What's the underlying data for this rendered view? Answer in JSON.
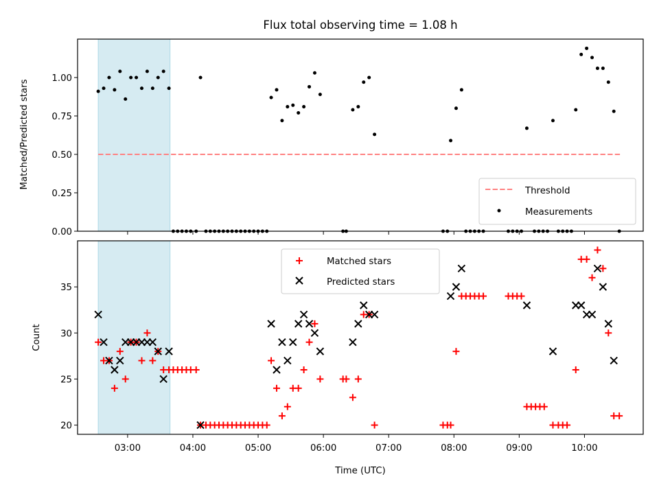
{
  "chart_data": [
    {
      "type": "scatter",
      "title": "Flux total observing time = 1.08 h",
      "xlabel": "",
      "ylabel": "Matched/Predicted stars",
      "xlim": [
        "02:14",
        "10:54"
      ],
      "ylim": [
        0,
        1.25
      ],
      "x_ticks": [
        "03:00",
        "04:00",
        "05:00",
        "06:00",
        "07:00",
        "08:00",
        "09:00",
        "10:00"
      ],
      "y_ticks": [
        "0.00",
        "0.25",
        "0.50",
        "0.75",
        "1.00"
      ],
      "y_tick_values": [
        0,
        0.25,
        0.5,
        0.75,
        1.0
      ],
      "shaded_span": [
        "02:33",
        "03:39"
      ],
      "shade_color": "#add8e6",
      "grid": false,
      "legend_position": "lower right",
      "threshold": {
        "name": "Threshold",
        "value": 0.5,
        "x_range": [
          "02:33",
          "10:34"
        ],
        "color": "#ff8080"
      },
      "series": [
        {
          "name": "Measurements",
          "color": "#000000",
          "marker": "dot",
          "points": [
            [
              "02:33",
              0.91
            ],
            [
              "02:38",
              0.93
            ],
            [
              "02:43",
              1.0
            ],
            [
              "02:48",
              0.92
            ],
            [
              "02:53",
              1.04
            ],
            [
              "02:58",
              0.86
            ],
            [
              "03:03",
              1.0
            ],
            [
              "03:08",
              1.0
            ],
            [
              "03:13",
              0.93
            ],
            [
              "03:18",
              1.04
            ],
            [
              "03:23",
              0.93
            ],
            [
              "03:28",
              1.0
            ],
            [
              "03:33",
              1.04
            ],
            [
              "03:38",
              0.93
            ],
            [
              "03:42",
              0.0
            ],
            [
              "03:46",
              0.0
            ],
            [
              "03:50",
              0.0
            ],
            [
              "03:54",
              0.0
            ],
            [
              "03:58",
              0.0
            ],
            [
              "04:03",
              0.0
            ],
            [
              "04:07",
              1.0
            ],
            [
              "04:12",
              0.0
            ],
            [
              "04:16",
              0.0
            ],
            [
              "04:20",
              0.0
            ],
            [
              "04:24",
              0.0
            ],
            [
              "04:28",
              0.0
            ],
            [
              "04:32",
              0.0
            ],
            [
              "04:36",
              0.0
            ],
            [
              "04:40",
              0.0
            ],
            [
              "04:44",
              0.0
            ],
            [
              "04:48",
              0.0
            ],
            [
              "04:52",
              0.0
            ],
            [
              "04:56",
              0.0
            ],
            [
              "05:00",
              0.0
            ],
            [
              "05:04",
              0.0
            ],
            [
              "05:08",
              0.0
            ],
            [
              "05:12",
              0.87
            ],
            [
              "05:17",
              0.92
            ],
            [
              "05:22",
              0.72
            ],
            [
              "05:27",
              0.81
            ],
            [
              "05:32",
              0.82
            ],
            [
              "05:37",
              0.77
            ],
            [
              "05:42",
              0.81
            ],
            [
              "05:47",
              0.94
            ],
            [
              "05:52",
              1.03
            ],
            [
              "05:57",
              0.89
            ],
            [
              "06:18",
              0.0
            ],
            [
              "06:21",
              0.0
            ],
            [
              "06:27",
              0.79
            ],
            [
              "06:32",
              0.81
            ],
            [
              "06:37",
              0.97
            ],
            [
              "06:42",
              1.0
            ],
            [
              "06:47",
              0.63
            ],
            [
              "07:50",
              0.0
            ],
            [
              "07:54",
              0.0
            ],
            [
              "07:57",
              0.59
            ],
            [
              "08:02",
              0.8
            ],
            [
              "08:07",
              0.92
            ],
            [
              "08:11",
              0.0
            ],
            [
              "08:15",
              0.0
            ],
            [
              "08:19",
              0.0
            ],
            [
              "08:23",
              0.0
            ],
            [
              "08:27",
              0.0
            ],
            [
              "08:50",
              0.0
            ],
            [
              "08:54",
              0.0
            ],
            [
              "08:58",
              0.0
            ],
            [
              "09:02",
              0.0
            ],
            [
              "09:07",
              0.67
            ],
            [
              "09:14",
              0.0
            ],
            [
              "09:18",
              0.0
            ],
            [
              "09:22",
              0.0
            ],
            [
              "09:26",
              0.0
            ],
            [
              "09:31",
              0.72
            ],
            [
              "09:36",
              0.0
            ],
            [
              "09:40",
              0.0
            ],
            [
              "09:44",
              0.0
            ],
            [
              "09:48",
              0.0
            ],
            [
              "09:52",
              0.79
            ],
            [
              "09:57",
              1.15
            ],
            [
              "10:02",
              1.19
            ],
            [
              "10:07",
              1.13
            ],
            [
              "10:12",
              1.06
            ],
            [
              "10:17",
              1.06
            ],
            [
              "10:22",
              0.97
            ],
            [
              "10:27",
              0.78
            ],
            [
              "10:32",
              0.0
            ]
          ]
        }
      ]
    },
    {
      "type": "scatter",
      "title": "",
      "xlabel": "Time (UTC)",
      "ylabel": "Count",
      "xlim": [
        "02:14",
        "10:54"
      ],
      "ylim": [
        19,
        40
      ],
      "x_ticks": [
        "03:00",
        "04:00",
        "05:00",
        "06:00",
        "07:00",
        "08:00",
        "09:00",
        "10:00"
      ],
      "y_ticks": [
        "20",
        "25",
        "30",
        "35"
      ],
      "y_tick_values": [
        20,
        25,
        30,
        35
      ],
      "shaded_span": [
        "02:33",
        "03:39"
      ],
      "grid": false,
      "legend_position": "upper center",
      "series": [
        {
          "name": "Matched stars",
          "color": "#ff0000",
          "marker": "plus",
          "points": [
            [
              "02:33",
              29
            ],
            [
              "02:38",
              27
            ],
            [
              "02:43",
              27
            ],
            [
              "02:48",
              24
            ],
            [
              "02:53",
              28
            ],
            [
              "02:58",
              25
            ],
            [
              "03:03",
              29
            ],
            [
              "03:08",
              29
            ],
            [
              "03:13",
              27
            ],
            [
              "03:18",
              30
            ],
            [
              "03:23",
              27
            ],
            [
              "03:28",
              28
            ],
            [
              "03:33",
              26
            ],
            [
              "03:38",
              26
            ],
            [
              "03:42",
              26
            ],
            [
              "03:46",
              26
            ],
            [
              "03:50",
              26
            ],
            [
              "03:54",
              26
            ],
            [
              "03:58",
              26
            ],
            [
              "04:03",
              26
            ],
            [
              "04:07",
              20
            ],
            [
              "04:12",
              20
            ],
            [
              "04:16",
              20
            ],
            [
              "04:20",
              20
            ],
            [
              "04:24",
              20
            ],
            [
              "04:28",
              20
            ],
            [
              "04:32",
              20
            ],
            [
              "04:36",
              20
            ],
            [
              "04:40",
              20
            ],
            [
              "04:44",
              20
            ],
            [
              "04:48",
              20
            ],
            [
              "04:52",
              20
            ],
            [
              "04:56",
              20
            ],
            [
              "05:00",
              20
            ],
            [
              "05:04",
              20
            ],
            [
              "05:08",
              20
            ],
            [
              "05:12",
              27
            ],
            [
              "05:17",
              24
            ],
            [
              "05:22",
              21
            ],
            [
              "05:27",
              22
            ],
            [
              "05:32",
              24
            ],
            [
              "05:37",
              24
            ],
            [
              "05:42",
              26
            ],
            [
              "05:47",
              29
            ],
            [
              "05:52",
              31
            ],
            [
              "05:57",
              25
            ],
            [
              "06:18",
              25
            ],
            [
              "06:21",
              25
            ],
            [
              "06:27",
              23
            ],
            [
              "06:32",
              25
            ],
            [
              "06:37",
              32
            ],
            [
              "06:42",
              32
            ],
            [
              "06:47",
              20
            ],
            [
              "07:50",
              20
            ],
            [
              "07:54",
              20
            ],
            [
              "07:57",
              20
            ],
            [
              "08:02",
              28
            ],
            [
              "08:07",
              34
            ],
            [
              "08:11",
              34
            ],
            [
              "08:15",
              34
            ],
            [
              "08:19",
              34
            ],
            [
              "08:23",
              34
            ],
            [
              "08:27",
              34
            ],
            [
              "08:50",
              34
            ],
            [
              "08:54",
              34
            ],
            [
              "08:58",
              34
            ],
            [
              "09:02",
              34
            ],
            [
              "09:07",
              22
            ],
            [
              "09:11",
              22
            ],
            [
              "09:15",
              22
            ],
            [
              "09:19",
              22
            ],
            [
              "09:23",
              22
            ],
            [
              "09:31",
              20
            ],
            [
              "09:36",
              20
            ],
            [
              "09:40",
              20
            ],
            [
              "09:44",
              20
            ],
            [
              "09:52",
              26
            ],
            [
              "09:57",
              38
            ],
            [
              "10:02",
              38
            ],
            [
              "10:07",
              36
            ],
            [
              "10:12",
              39
            ],
            [
              "10:17",
              37
            ],
            [
              "10:22",
              30
            ],
            [
              "10:27",
              21
            ],
            [
              "10:32",
              21
            ]
          ]
        },
        {
          "name": "Predicted stars",
          "color": "#000000",
          "marker": "x",
          "points": [
            [
              "02:33",
              32
            ],
            [
              "02:38",
              29
            ],
            [
              "02:43",
              27
            ],
            [
              "02:48",
              26
            ],
            [
              "02:53",
              27
            ],
            [
              "02:58",
              29
            ],
            [
              "03:03",
              29
            ],
            [
              "03:08",
              29
            ],
            [
              "03:13",
              29
            ],
            [
              "03:18",
              29
            ],
            [
              "03:23",
              29
            ],
            [
              "03:28",
              28
            ],
            [
              "03:33",
              25
            ],
            [
              "03:38",
              28
            ],
            [
              "04:07",
              20
            ],
            [
              "05:12",
              31
            ],
            [
              "05:17",
              26
            ],
            [
              "05:22",
              29
            ],
            [
              "05:27",
              27
            ],
            [
              "05:32",
              29
            ],
            [
              "05:37",
              31
            ],
            [
              "05:42",
              32
            ],
            [
              "05:47",
              31
            ],
            [
              "05:52",
              30
            ],
            [
              "05:57",
              28
            ],
            [
              "06:27",
              29
            ],
            [
              "06:32",
              31
            ],
            [
              "06:37",
              33
            ],
            [
              "06:42",
              32
            ],
            [
              "06:47",
              32
            ],
            [
              "07:57",
              34
            ],
            [
              "08:02",
              35
            ],
            [
              "08:07",
              37
            ],
            [
              "09:07",
              33
            ],
            [
              "09:31",
              28
            ],
            [
              "09:52",
              33
            ],
            [
              "09:57",
              33
            ],
            [
              "10:02",
              32
            ],
            [
              "10:07",
              32
            ],
            [
              "10:12",
              37
            ],
            [
              "10:17",
              35
            ],
            [
              "10:22",
              31
            ],
            [
              "10:27",
              27
            ]
          ]
        }
      ]
    }
  ]
}
